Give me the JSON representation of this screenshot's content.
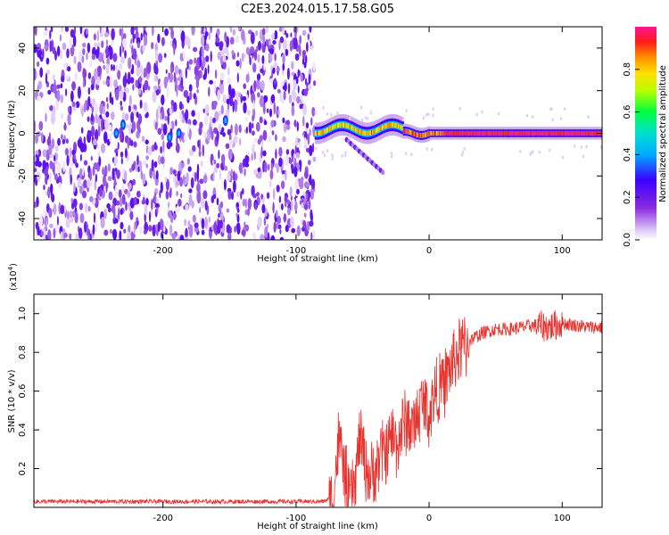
{
  "title": "C2E3.2024.015.17.58.G05",
  "chart_data": [
    {
      "type": "heatmap",
      "xlabel": "Height of straight line (km)",
      "ylabel": "Frequency (Hz)",
      "xlim": [
        -297,
        130
      ],
      "ylim": [
        -50,
        50
      ],
      "x_ticks": [
        -200,
        -100,
        0,
        100
      ],
      "y_ticks": [
        -40,
        -20,
        0,
        20,
        40
      ],
      "noise_region_x": [
        -297,
        -86
      ],
      "signal_region_x": [
        -86,
        130
      ],
      "signal_center_hz": 0,
      "colorbar": {
        "label": "Normalized spectral amplitude",
        "range": [
          0.0,
          1.0
        ],
        "ticks": [
          0.0,
          0.2,
          0.4,
          0.6,
          0.8
        ],
        "colors": [
          "#ffffff",
          "#8c2be2",
          "#3b00ff",
          "#00c8ff",
          "#00ff40",
          "#e0ff00",
          "#ff8c00",
          "#ff0000",
          "#ff1493"
        ]
      },
      "grid": false
    },
    {
      "type": "line",
      "xlabel": "Height of straight line (km)",
      "ylabel": "SNR (10 * v/v)",
      "y_scale_label": "(x10",
      "y_scale_exponent": "4",
      "y_scale_suffix": ")",
      "xlim": [
        -297,
        130
      ],
      "ylim": [
        0,
        1.1
      ],
      "x_ticks": [
        -200,
        -100,
        0,
        100
      ],
      "y_ticks": [
        0.2,
        0.4,
        0.6,
        0.8,
        1.0
      ],
      "series": [
        {
          "color": "#e8322d",
          "x": [
            -297,
            -250,
            -200,
            -150,
            -100,
            -80,
            -72,
            -68,
            -64,
            -60,
            -56,
            -52,
            -48,
            -44,
            -40,
            -36,
            -32,
            -28,
            -24,
            -20,
            -16,
            -12,
            -8,
            -4,
            0,
            5,
            10,
            15,
            20,
            25,
            30,
            35,
            40,
            50,
            60,
            70,
            80,
            90,
            100,
            110,
            120,
            130
          ],
          "y": [
            0.03,
            0.03,
            0.03,
            0.03,
            0.03,
            0.03,
            0.05,
            0.35,
            0.2,
            0.05,
            0.1,
            0.38,
            0.22,
            0.15,
            0.2,
            0.28,
            0.3,
            0.38,
            0.32,
            0.42,
            0.45,
            0.4,
            0.5,
            0.55,
            0.48,
            0.6,
            0.62,
            0.7,
            0.78,
            0.82,
            0.86,
            0.88,
            0.9,
            0.92,
            0.92,
            0.93,
            0.94,
            0.93,
            0.95,
            0.94,
            0.93,
            0.93
          ]
        }
      ],
      "grid": false
    }
  ]
}
